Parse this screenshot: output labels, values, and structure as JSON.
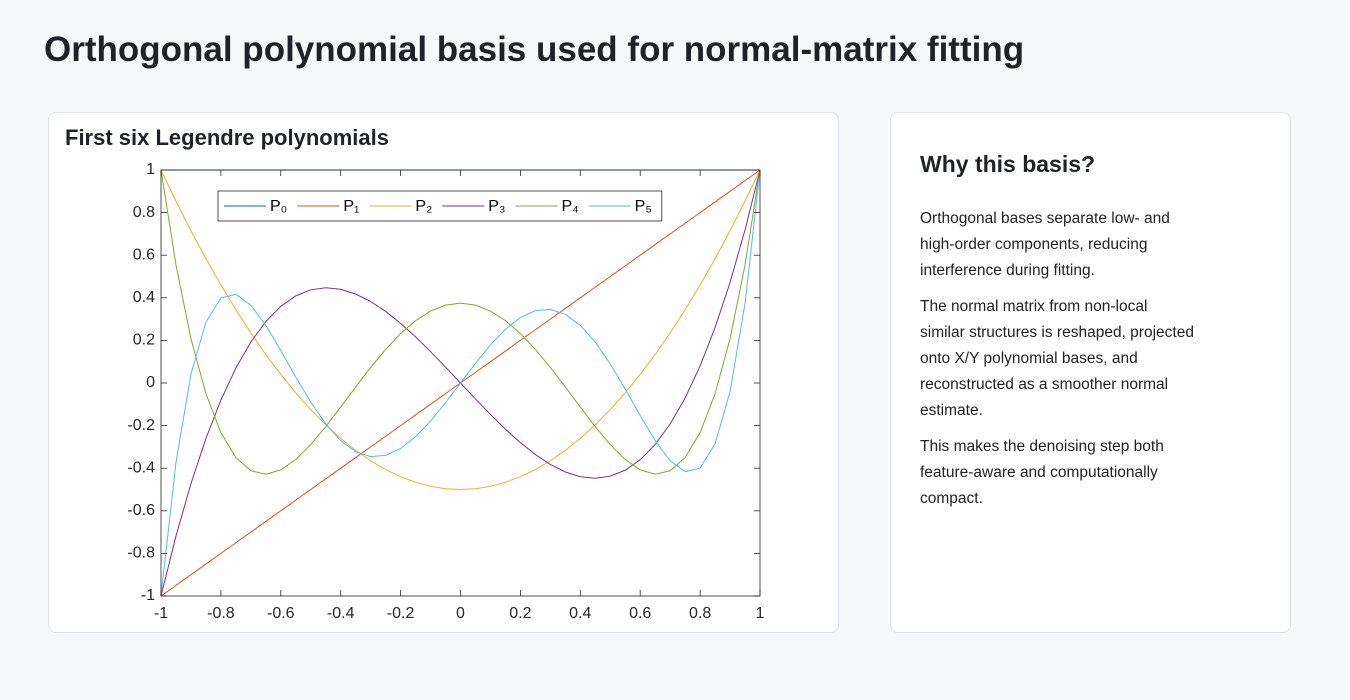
{
  "title": "Orthogonal polynomial basis used for normal-matrix fitting",
  "chart_data": {
    "type": "line",
    "title": "First six Legendre polynomials",
    "x": [
      -1,
      -0.95,
      -0.9,
      -0.85,
      -0.8,
      -0.75,
      -0.7,
      -0.65,
      -0.6,
      -0.55,
      -0.5,
      -0.45,
      -0.4,
      -0.35,
      -0.3,
      -0.25,
      -0.2,
      -0.15,
      -0.1,
      -0.05,
      0,
      0.05,
      0.1,
      0.15,
      0.2,
      0.25,
      0.3,
      0.35,
      0.4,
      0.45,
      0.5,
      0.55,
      0.6,
      0.65,
      0.7,
      0.75,
      0.8,
      0.85,
      0.9,
      0.95,
      1
    ],
    "series": [
      {
        "name": "P₀",
        "color": "#0072bd",
        "values": [
          1,
          1,
          1,
          1,
          1,
          1,
          1,
          1,
          1,
          1,
          1,
          1,
          1,
          1,
          1,
          1,
          1,
          1,
          1,
          1,
          1,
          1,
          1,
          1,
          1,
          1,
          1,
          1,
          1,
          1,
          1,
          1,
          1,
          1,
          1,
          1,
          1,
          1,
          1,
          1,
          1
        ]
      },
      {
        "name": "P₁",
        "color": "#d95319",
        "values": [
          -1,
          -0.95,
          -0.9,
          -0.85,
          -0.8,
          -0.75,
          -0.7,
          -0.65,
          -0.6,
          -0.55,
          -0.5,
          -0.45,
          -0.4,
          -0.35,
          -0.3,
          -0.25,
          -0.2,
          -0.15,
          -0.1,
          -0.05,
          0,
          0.05,
          0.1,
          0.15,
          0.2,
          0.25,
          0.3,
          0.35,
          0.4,
          0.45,
          0.5,
          0.55,
          0.6,
          0.65,
          0.7,
          0.75,
          0.8,
          0.85,
          0.9,
          0.95,
          1
        ]
      },
      {
        "name": "P₂",
        "color": "#edb120",
        "values": [
          1,
          0.85375,
          0.715,
          0.58375,
          0.46,
          0.34375,
          0.235,
          0.13375,
          0.04,
          -0.04625,
          -0.125,
          -0.19625,
          -0.26,
          -0.31625,
          -0.365,
          -0.40625,
          -0.44,
          -0.46625,
          -0.485,
          -0.49625,
          -0.5,
          -0.49625,
          -0.485,
          -0.46625,
          -0.44,
          -0.40625,
          -0.365,
          -0.31625,
          -0.26,
          -0.19625,
          -0.125,
          -0.04625,
          0.04,
          0.13375,
          0.235,
          0.34375,
          0.46,
          0.58375,
          0.715,
          0.85375,
          1
        ]
      },
      {
        "name": "P₃",
        "color": "#7e2f8e",
        "values": [
          -1,
          -0.71844,
          -0.4725,
          -0.26031,
          -0.08,
          0.07031,
          0.1925,
          0.28844,
          0.36,
          0.40906,
          0.4375,
          0.44719,
          0.44,
          0.41781,
          0.3825,
          0.33594,
          0.28,
          0.21656,
          0.1475,
          0.07469,
          0,
          -0.07469,
          -0.1475,
          -0.21656,
          -0.28,
          -0.33594,
          -0.3825,
          -0.41781,
          -0.44,
          -0.44719,
          -0.4375,
          -0.40906,
          -0.36,
          -0.28844,
          -0.1925,
          -0.07031,
          0.08,
          0.26031,
          0.4725,
          0.71844,
          1
        ]
      },
      {
        "name": "P₄",
        "color": "#77ac30",
        "values": [
          1,
          0.55409,
          0.20794,
          -0.0506,
          -0.233,
          -0.3501,
          -0.41206,
          -0.42841,
          -0.408,
          -0.35904,
          -0.28906,
          -0.20497,
          -0.113,
          -0.01872,
          0.07294,
          0.15771,
          0.232,
          0.29284,
          0.33794,
          0.36565,
          0.375,
          0.36565,
          0.33794,
          0.29284,
          0.232,
          0.15771,
          0.07294,
          -0.01872,
          -0.113,
          -0.20497,
          -0.28906,
          -0.35904,
          -0.408,
          -0.42841,
          -0.41206,
          -0.3501,
          -0.233,
          -0.0506,
          0.20794,
          0.55409,
          1
        ]
      },
      {
        "name": "P₅",
        "color": "#4dbeee",
        "values": [
          -1,
          -0.37274,
          0.04114,
          0.28566,
          0.39952,
          0.41638,
          0.3652,
          0.27049,
          0.15264,
          0.02819,
          -0.08984,
          -0.19172,
          -0.27064,
          -0.32245,
          -0.34539,
          -0.33972,
          -0.30752,
          -0.25232,
          -0.17883,
          -0.09266,
          0,
          0.09266,
          0.17883,
          0.25232,
          0.30752,
          0.33972,
          0.34539,
          0.32245,
          0.27064,
          0.19172,
          0.08984,
          -0.02819,
          -0.15264,
          -0.27049,
          -0.3652,
          -0.41638,
          -0.39952,
          -0.28566,
          -0.04114,
          0.37274,
          1
        ]
      }
    ],
    "xlim": [
      -1,
      1
    ],
    "ylim": [
      -1,
      1
    ],
    "xticks": [
      -1,
      -0.8,
      -0.6,
      -0.4,
      -0.2,
      0,
      0.2,
      0.4,
      0.6,
      0.8,
      1
    ],
    "yticks": [
      -1,
      -0.8,
      -0.6,
      -0.4,
      -0.2,
      0,
      0.2,
      0.4,
      0.6,
      0.8,
      1
    ],
    "grid": false,
    "legend": "top",
    "legend_orientation": "horizontal"
  },
  "sidebar": {
    "heading": "Why this basis?",
    "paragraphs": [
      "Orthogonal bases separate low- and high-order components, reducing interference during fitting.",
      "The normal matrix from non-local similar structures is reshaped, projected onto X/Y polynomial bases, and reconstructed as a smoother normal estimate.",
      "This makes the denoising step both feature-aware and computationally compact."
    ]
  }
}
